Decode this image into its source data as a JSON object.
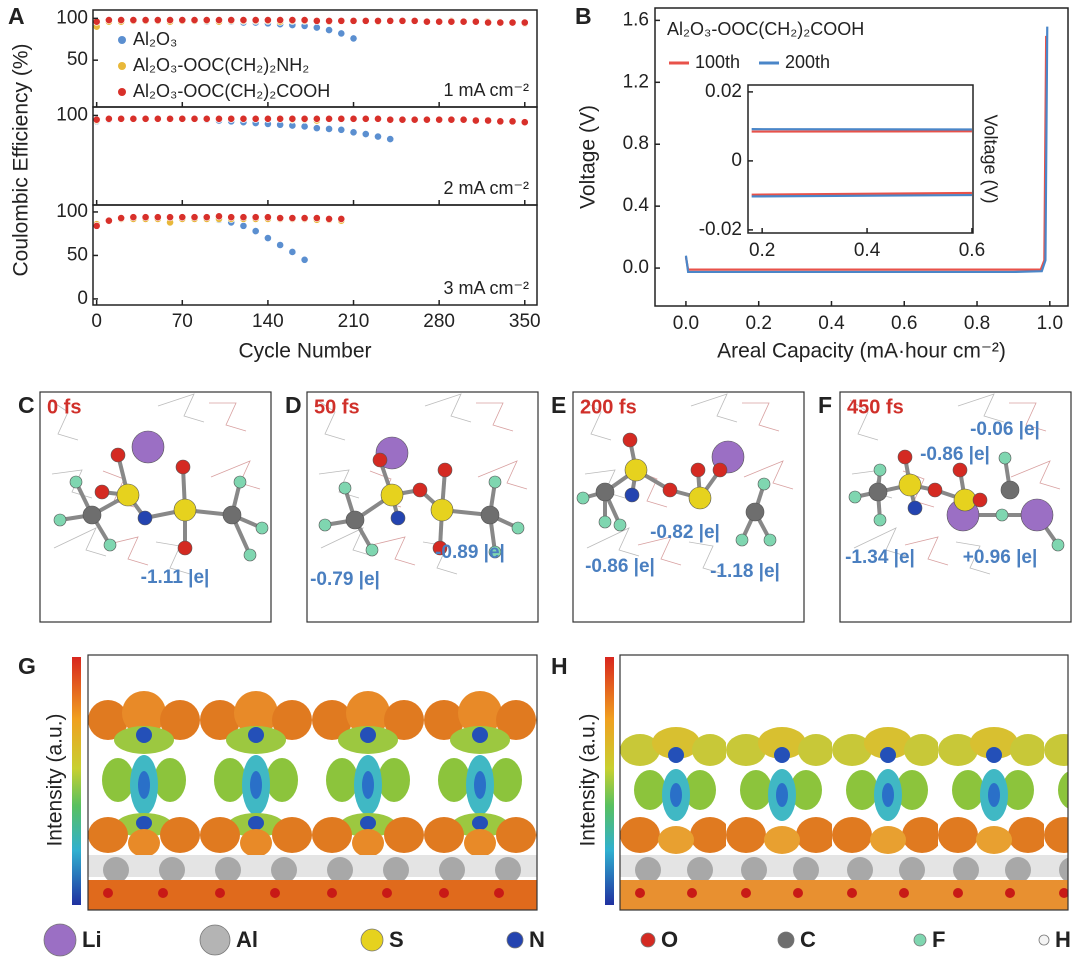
{
  "chart_data": [
    {
      "type": "scatter",
      "panel": "A",
      "x_label": "Cycle Number",
      "y_label": "Coulombic Efficiency (%)",
      "xlim": [
        -3,
        360
      ],
      "xticks": [
        0,
        70,
        140,
        210,
        280,
        350
      ],
      "legend": "upper left",
      "subplots": [
        {
          "annotation": "1 mA cm⁻²",
          "ylim": [
            -6,
            110
          ],
          "yticks": [
            50,
            100
          ],
          "series": [
            {
              "name": "Al₂O₃",
              "color": "#5b8fd0",
              "x": [
                0,
                10,
                20,
                30,
                40,
                50,
                60,
                70,
                80,
                90,
                100,
                110,
                120,
                130,
                140,
                150,
                160,
                170,
                180,
                190,
                200,
                210
              ],
              "values": [
                94,
                96,
                97,
                97,
                97,
                97,
                97,
                97,
                97,
                96,
                96,
                96,
                95,
                95,
                94,
                93,
                92,
                91,
                89,
                86,
                82,
                76
              ]
            },
            {
              "name": "Al₂O₃-OOC(CH₂)₂NH₂",
              "color": "#e8b83a",
              "x": [
                0,
                10,
                20,
                30,
                40,
                50,
                60,
                70,
                80,
                90,
                100,
                110,
                120,
                130,
                140,
                150,
                160,
                170,
                180,
                190,
                200,
                210,
                220,
                230,
                240,
                250,
                260,
                270,
                280,
                290,
                300,
                310,
                320,
                330,
                340,
                350
              ],
              "values": [
                90,
                96,
                96,
                97,
                97,
                97,
                96,
                97,
                97,
                97,
                96,
                97,
                97,
                97,
                97,
                96,
                97,
                97,
                97,
                96,
                97,
                97,
                97,
                96,
                97,
                97,
                97,
                96,
                96,
                97,
                96,
                96,
                96,
                95,
                95,
                94
              ]
            },
            {
              "name": "Al₂O₃-OOC(CH₂)₂COOH",
              "color": "#d8302a",
              "x": [
                0,
                10,
                20,
                30,
                40,
                50,
                60,
                70,
                80,
                90,
                100,
                110,
                120,
                130,
                140,
                150,
                160,
                170,
                180,
                190,
                200,
                210,
                220,
                230,
                240,
                250,
                260,
                270,
                280,
                290,
                300,
                310,
                320,
                330,
                340,
                350
              ],
              "values": [
                96,
                98,
                98,
                98,
                98,
                98,
                98,
                98,
                98,
                98,
                98,
                98,
                98,
                98,
                98,
                98,
                98,
                98,
                97,
                97,
                97,
                97,
                97,
                97,
                97,
                97,
                97,
                96,
                96,
                96,
                96,
                96,
                95,
                95,
                95,
                95
              ]
            }
          ]
        },
        {
          "annotation": "2 mA cm⁻²",
          "ylim": [
            -6,
            110
          ],
          "yticks": [
            100
          ],
          "series": [
            {
              "color": "#5b8fd0",
              "x": [
                0,
                10,
                20,
                30,
                40,
                50,
                60,
                70,
                80,
                90,
                100,
                110,
                120,
                130,
                140,
                150,
                160,
                170,
                180,
                190,
                200,
                210,
                220,
                230,
                240
              ],
              "values": [
                93,
                95,
                96,
                96,
                96,
                96,
                96,
                96,
                96,
                95,
                94,
                93,
                92,
                91,
                90,
                89,
                88,
                87,
                85,
                84,
                83,
                80,
                78,
                75,
                72
              ]
            },
            {
              "color": "#e8b83a",
              "x": [
                0,
                10,
                20,
                30,
                40,
                50,
                60,
                70,
                80,
                90,
                100,
                110,
                120,
                130,
                140,
                150,
                160,
                170,
                180
              ],
              "values": [
                94,
                96,
                96,
                96,
                96,
                96,
                96,
                96,
                96,
                96,
                96,
                96,
                96,
                96,
                96,
                96,
                95,
                95,
                94
              ]
            },
            {
              "color": "#d8302a",
              "x": [
                0,
                10,
                20,
                30,
                40,
                50,
                60,
                70,
                80,
                90,
                100,
                110,
                120,
                130,
                140,
                150,
                160,
                170,
                180,
                190,
                200,
                210,
                220,
                230,
                240,
                250,
                260,
                270,
                280,
                290,
                300,
                310,
                320,
                330,
                340,
                350
              ],
              "values": [
                95,
                96,
                96,
                96,
                96,
                96,
                96,
                96,
                96,
                96,
                96,
                96,
                96,
                96,
                96,
                96,
                96,
                96,
                96,
                96,
                96,
                96,
                96,
                96,
                95,
                95,
                95,
                95,
                95,
                95,
                95,
                94,
                94,
                93,
                93,
                92
              ]
            }
          ]
        },
        {
          "annotation": "3 mA cm⁻²",
          "ylim": [
            -7,
            108
          ],
          "yticks": [
            0,
            50,
            100
          ],
          "series": [
            {
              "color": "#5b8fd0",
              "x": [
                0,
                10,
                20,
                30,
                40,
                50,
                60,
                70,
                80,
                90,
                100,
                110,
                120,
                130,
                140,
                150,
                160,
                170
              ],
              "values": [
                85,
                90,
                92,
                93,
                93,
                93,
                93,
                93,
                93,
                92,
                91,
                88,
                84,
                78,
                70,
                62,
                54,
                45
              ]
            },
            {
              "color": "#e8b83a",
              "x": [
                0,
                10,
                20,
                30,
                40,
                50,
                60,
                70,
                80,
                90,
                100,
                110,
                120,
                130,
                140,
                150,
                160,
                170,
                180,
                190,
                200
              ],
              "values": [
                86,
                90,
                92,
                92,
                92,
                92,
                88,
                92,
                92,
                92,
                92,
                92,
                92,
                92,
                92,
                92,
                92,
                92,
                91,
                91,
                90
              ]
            },
            {
              "color": "#d8302a",
              "x": [
                0,
                10,
                20,
                30,
                40,
                50,
                60,
                70,
                80,
                90,
                100,
                110,
                120,
                130,
                140,
                150,
                160,
                170,
                180,
                190,
                200
              ],
              "values": [
                84,
                90,
                93,
                94,
                94,
                94,
                94,
                94,
                94,
                94,
                95,
                94,
                94,
                94,
                94,
                93,
                93,
                93,
                93,
                92,
                92
              ]
            }
          ]
        }
      ]
    },
    {
      "type": "line",
      "panel": "B",
      "x_label": "Areal Capacity (mA·hour cm⁻²)",
      "y_label": "Voltage  (V)",
      "annotation": "Al₂O₃-OOC(CH₂)₂COOH",
      "legend": "upper left",
      "xlim": [
        -0.085,
        1.05
      ],
      "xticks": [
        {
          "value": 0,
          "label": "0.0"
        },
        0.2,
        0.4,
        0.6,
        0.8,
        {
          "value": 1,
          "label": "1.0"
        }
      ],
      "ylim": [
        -0.245,
        1.68
      ],
      "yticks": [
        {
          "value": 0,
          "label": "0.0"
        },
        0.4,
        0.8,
        1.2,
        1.6
      ],
      "series": [
        {
          "name": "100th",
          "color": "#e8524a",
          "x": [
            0,
            0.006,
            0.3,
            0.6,
            0.9,
            0.975,
            0.985,
            0.99
          ],
          "values": [
            0.07,
            -0.01,
            -0.01,
            -0.01,
            -0.01,
            -0.01,
            0.05,
            1.5
          ]
        },
        {
          "name": "200th",
          "color": "#4a86c8",
          "x": [
            0,
            0.006,
            0.3,
            0.6,
            0.9,
            0.978,
            0.988,
            0.993
          ],
          "values": [
            0.08,
            -0.025,
            -0.025,
            -0.025,
            -0.025,
            -0.02,
            0.05,
            1.56
          ]
        }
      ]
    },
    {
      "type": "line",
      "panel": "B-inset",
      "y_label": "Voltage  (V)",
      "xlim": [
        0.173,
        0.602
      ],
      "xticks": [
        0.2,
        0.4,
        0.6
      ],
      "ylim": [
        -0.0209,
        0.022
      ],
      "yticks": [
        0.02,
        0,
        -0.02
      ],
      "series": [
        {
          "color": "#e8524a",
          "x": [
            0.18,
            0.6
          ],
          "values": [
            0.0085,
            0.0086
          ]
        },
        {
          "color": "#4a86c8",
          "x": [
            0.18,
            0.6
          ],
          "values": [
            0.0092,
            0.0091
          ]
        },
        {
          "color": "#e8524a",
          "x": [
            0.18,
            0.6
          ],
          "values": [
            -0.0098,
            -0.0093
          ]
        },
        {
          "color": "#4a86c8",
          "x": [
            0.18,
            0.6
          ],
          "values": [
            -0.0103,
            -0.0099
          ]
        }
      ]
    }
  ],
  "panels": [
    {
      "letter": "C",
      "time": "0 fs",
      "charges": [
        "-1.11 |e|"
      ]
    },
    {
      "letter": "D",
      "time": "50 fs",
      "charges": [
        "-0.79 |e|",
        "-0.89 |e|"
      ]
    },
    {
      "letter": "E",
      "time": "200 fs",
      "charges": [
        "-0.82 |e|",
        "-0.86 |e|",
        "-1.18 |e|"
      ]
    },
    {
      "letter": "F",
      "time": "450 fs",
      "charges": [
        "-0.06 |e|",
        "-0.86 |e|",
        "-1.34 |e|",
        "+0.96 |e|"
      ]
    }
  ],
  "maps": [
    {
      "letter": "G",
      "colorbar_label": "Intensity (a.u.)"
    },
    {
      "letter": "H",
      "colorbar_label": "Intensity (a.u.)"
    }
  ],
  "atom_legend": [
    {
      "label": "Li",
      "color": "#9b6fc4"
    },
    {
      "label": "Al",
      "color": "#b4b4b4"
    },
    {
      "label": "S",
      "color": "#e6d21e"
    },
    {
      "label": "N",
      "color": "#2444b0"
    },
    {
      "label": "O",
      "color": "#d42a22"
    },
    {
      "label": "C",
      "color": "#6e6e6e"
    },
    {
      "label": "F",
      "color": "#7fd6b0"
    },
    {
      "label": "H",
      "color": "#f4f4f4"
    }
  ]
}
